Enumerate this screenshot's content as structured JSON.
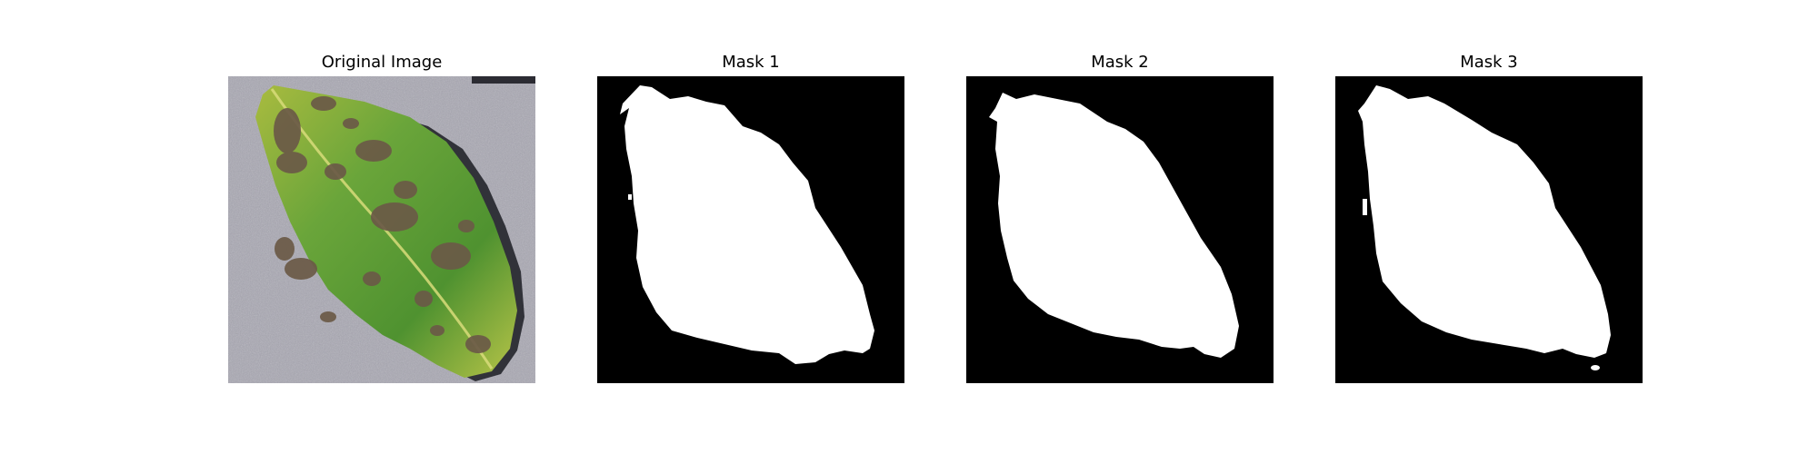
{
  "figure": {
    "panels": [
      {
        "title": "Original Image",
        "kind": "photo"
      },
      {
        "title": "Mask 1",
        "kind": "mask"
      },
      {
        "title": "Mask 2",
        "kind": "mask"
      },
      {
        "title": "Mask 3",
        "kind": "mask"
      }
    ],
    "colors": {
      "mask_background": "#000000",
      "mask_foreground": "#ffffff",
      "photo_background": "#a9a8b3",
      "leaf_green": "#5f9b34",
      "leaf_yellow": "#c2cc4a",
      "lesion_brown": "#6b5a47",
      "leaf_shadow": "#24252b"
    }
  }
}
